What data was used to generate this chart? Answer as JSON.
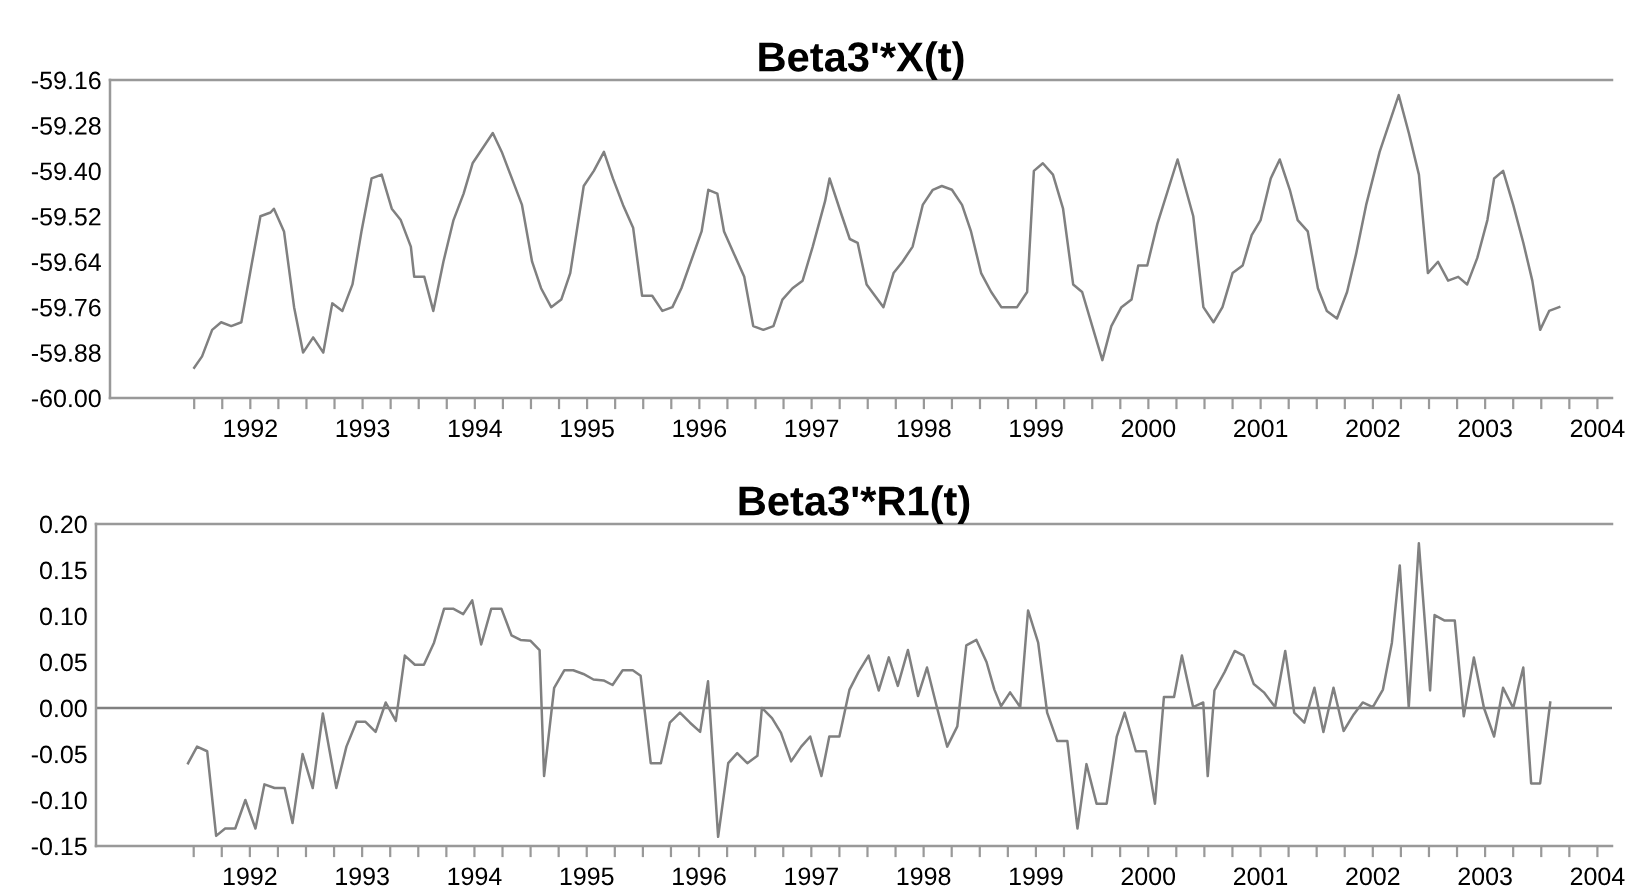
{
  "chart_data": [
    {
      "type": "line",
      "title": "Beta3'*X(t)",
      "color": "#808080",
      "x": [
        1992.0,
        1992.07,
        1992.16,
        1992.24,
        1992.33,
        1992.42,
        1992.51,
        1992.59,
        1992.68,
        1992.71,
        1992.8,
        1992.89,
        1992.97,
        1993.06,
        1993.15,
        1993.23,
        1993.32,
        1993.41,
        1993.49,
        1993.58,
        1993.67,
        1993.76,
        1993.84,
        1993.93,
        1993.96,
        1994.05,
        1994.13,
        1994.22,
        1994.31,
        1994.4,
        1994.48,
        1994.66,
        1994.74,
        1994.83,
        1994.92,
        1995.01,
        1995.09,
        1995.18,
        1995.27,
        1995.35,
        1995.47,
        1995.56,
        1995.65,
        1995.73,
        1995.82,
        1995.91,
        1995.99,
        1996.08,
        1996.17,
        1996.26,
        1996.34,
        1996.52,
        1996.58,
        1996.66,
        1996.72,
        1996.81,
        1996.9,
        1996.98,
        1997.07,
        1997.16,
        1997.24,
        1997.33,
        1997.42,
        1997.51,
        1997.62,
        1997.66,
        1997.76,
        1997.84,
        1997.91,
        1997.99,
        1998.14,
        1998.23,
        1998.31,
        1998.4,
        1998.49,
        1998.58,
        1998.66,
        1998.75,
        1998.84,
        1998.92,
        1999.01,
        1999.1,
        1999.19,
        1999.33,
        1999.42,
        1999.48,
        1999.56,
        1999.65,
        1999.74,
        1999.83,
        1999.91,
        2000.0,
        2000.09,
        2000.17,
        2000.26,
        2000.35,
        2000.41,
        2000.49,
        2000.58,
        2000.76,
        2000.9,
        2000.99,
        2001.08,
        2001.16,
        2001.25,
        2001.34,
        2001.42,
        2001.5,
        2001.59,
        2001.67,
        2001.76,
        2001.83,
        2001.92,
        2002.01,
        2002.09,
        2002.18,
        2002.27,
        2002.35,
        2002.44,
        2002.56,
        2002.73,
        2002.82,
        2002.91,
        2002.99,
        2003.08,
        2003.17,
        2003.26,
        2003.34,
        2003.43,
        2003.52,
        2003.58,
        2003.66,
        2003.75,
        2003.84,
        2003.92,
        2003.99,
        2004.07,
        2004.16
      ],
      "values": [
        -59.92,
        -59.89,
        -59.82,
        -59.8,
        -59.81,
        -59.8,
        -59.65,
        -59.52,
        -59.51,
        -59.5,
        -59.56,
        -59.76,
        -59.88,
        -59.84,
        -59.88,
        -59.75,
        -59.77,
        -59.7,
        -59.56,
        -59.42,
        -59.41,
        -59.5,
        -59.53,
        -59.6,
        -59.68,
        -59.68,
        -59.77,
        -59.64,
        -59.53,
        -59.46,
        -59.38,
        -59.3,
        -59.35,
        -59.42,
        -59.49,
        -59.64,
        -59.71,
        -59.76,
        -59.74,
        -59.67,
        -59.44,
        -59.4,
        -59.35,
        -59.42,
        -59.49,
        -59.55,
        -59.73,
        -59.73,
        -59.77,
        -59.76,
        -59.71,
        -59.56,
        -59.45,
        -59.46,
        -59.56,
        -59.62,
        -59.68,
        -59.81,
        -59.82,
        -59.81,
        -59.74,
        -59.71,
        -59.69,
        -59.6,
        -59.48,
        -59.42,
        -59.51,
        -59.58,
        -59.59,
        -59.7,
        -59.76,
        -59.67,
        -59.64,
        -59.6,
        -59.49,
        -59.45,
        -59.44,
        -59.45,
        -59.49,
        -59.56,
        -59.67,
        -59.72,
        -59.76,
        -59.76,
        -59.72,
        -59.4,
        -59.38,
        -59.41,
        -59.5,
        -59.7,
        -59.72,
        -59.81,
        -59.9,
        -59.81,
        -59.76,
        -59.74,
        -59.65,
        -59.65,
        -59.54,
        -59.37,
        -59.52,
        -59.76,
        -59.8,
        -59.76,
        -59.67,
        -59.65,
        -59.57,
        -59.53,
        -59.42,
        -59.37,
        -59.45,
        -59.53,
        -59.56,
        -59.71,
        -59.77,
        -59.79,
        -59.72,
        -59.62,
        -59.49,
        -59.35,
        -59.2,
        -59.3,
        -59.41,
        -59.67,
        -59.64,
        -59.69,
        -59.68,
        -59.7,
        -59.63,
        -59.53,
        -59.42,
        -59.4,
        -59.49,
        -59.59,
        -59.69,
        -59.82,
        -59.77,
        -59.76
      ],
      "xlim": [
        1991.25,
        2004.63
      ],
      "ylim": [
        -60.0,
        -59.16
      ],
      "yticks": [
        {
          "value": -60.0,
          "label": "-60.00"
        },
        -59.88,
        -59.76,
        -59.64,
        -59.52,
        {
          "value": -59.4,
          "label": "-59.40"
        },
        -59.28,
        -59.16
      ],
      "xticks": [
        {
          "value": 1992,
          "label": null
        },
        {
          "value": 1992.25,
          "label": null
        },
        {
          "value": 1992.5,
          "label": "1992"
        },
        {
          "value": 1992.75,
          "label": null
        },
        {
          "value": 1993,
          "label": null
        },
        {
          "value": 1993.25,
          "label": null
        },
        {
          "value": 1993.5,
          "label": "1993"
        },
        {
          "value": 1993.75,
          "label": null
        },
        {
          "value": 1994,
          "label": null
        },
        {
          "value": 1994.25,
          "label": null
        },
        {
          "value": 1994.5,
          "label": "1994"
        },
        {
          "value": 1994.75,
          "label": null
        },
        {
          "value": 1995,
          "label": null
        },
        {
          "value": 1995.25,
          "label": null
        },
        {
          "value": 1995.5,
          "label": "1995"
        },
        {
          "value": 1995.75,
          "label": null
        },
        {
          "value": 1996,
          "label": null
        },
        {
          "value": 1996.25,
          "label": null
        },
        {
          "value": 1996.5,
          "label": "1996"
        },
        {
          "value": 1996.75,
          "label": null
        },
        {
          "value": 1997,
          "label": null
        },
        {
          "value": 1997.25,
          "label": null
        },
        {
          "value": 1997.5,
          "label": "1997"
        },
        {
          "value": 1997.75,
          "label": null
        },
        {
          "value": 1998,
          "label": null
        },
        {
          "value": 1998.25,
          "label": null
        },
        {
          "value": 1998.5,
          "label": "1998"
        },
        {
          "value": 1998.75,
          "label": null
        },
        {
          "value": 1999,
          "label": null
        },
        {
          "value": 1999.25,
          "label": null
        },
        {
          "value": 1999.5,
          "label": "1999"
        },
        {
          "value": 1999.75,
          "label": null
        },
        {
          "value": 2000,
          "label": null
        },
        {
          "value": 2000.25,
          "label": null
        },
        {
          "value": 2000.5,
          "label": "2000"
        },
        {
          "value": 2000.75,
          "label": null
        },
        {
          "value": 2001,
          "label": null
        },
        {
          "value": 2001.25,
          "label": null
        },
        {
          "value": 2001.5,
          "label": "2001"
        },
        {
          "value": 2001.75,
          "label": null
        },
        {
          "value": 2002,
          "label": null
        },
        {
          "value": 2002.25,
          "label": null
        },
        {
          "value": 2002.5,
          "label": "2002"
        },
        {
          "value": 2002.75,
          "label": null
        },
        {
          "value": 2003,
          "label": null
        },
        {
          "value": 2003.25,
          "label": null
        },
        {
          "value": 2003.5,
          "label": "2003"
        },
        {
          "value": 2003.75,
          "label": null
        },
        {
          "value": 2004,
          "label": null
        },
        {
          "value": 2004.25,
          "label": null
        },
        {
          "value": 2004.5,
          "label": "2004"
        }
      ]
    },
    {
      "type": "line",
      "title": "Beta3'*R1(t)",
      "color": "#808080",
      "x": [
        1991.95,
        1992.03,
        1992.12,
        1992.2,
        1992.28,
        1992.37,
        1992.46,
        1992.55,
        1992.63,
        1992.72,
        1992.81,
        1992.88,
        1992.97,
        1993.06,
        1993.15,
        1993.27,
        1993.36,
        1993.45,
        1993.53,
        1993.62,
        1993.71,
        1993.8,
        1993.88,
        1993.97,
        1994.05,
        1994.14,
        1994.23,
        1994.31,
        1994.4,
        1994.48,
        1994.56,
        1994.65,
        1994.74,
        1994.83,
        1994.91,
        1995.0,
        1995.08,
        1995.12,
        1995.21,
        1995.3,
        1995.38,
        1995.47,
        1995.56,
        1995.65,
        1995.73,
        1995.82,
        1995.91,
        1995.98,
        1996.07,
        1996.16,
        1996.24,
        1996.33,
        1996.42,
        1996.51,
        1996.58,
        1996.67,
        1996.76,
        1996.84,
        1996.93,
        1997.02,
        1997.06,
        1997.15,
        1997.23,
        1997.32,
        1997.41,
        1997.49,
        1997.59,
        1997.66,
        1997.75,
        1997.84,
        1997.92,
        1998.01,
        1998.1,
        1998.19,
        1998.27,
        1998.36,
        1998.45,
        1998.53,
        1998.62,
        1998.71,
        1998.8,
        1998.88,
        1998.97,
        1999.06,
        1999.13,
        1999.19,
        1999.27,
        1999.36,
        1999.43,
        1999.52,
        1999.6,
        1999.69,
        1999.78,
        1999.87,
        1999.95,
        2000.04,
        2000.13,
        2000.22,
        2000.29,
        2000.39,
        2000.48,
        2000.56,
        2000.64,
        2000.73,
        2000.8,
        2000.9,
        2000.99,
        2001.03,
        2001.09,
        2001.18,
        2001.27,
        2001.35,
        2001.44,
        2001.53,
        2001.63,
        2001.72,
        2001.8,
        2001.89,
        2001.98,
        2002.06,
        2002.15,
        2002.24,
        2002.33,
        2002.41,
        2002.5,
        2002.59,
        2002.67,
        2002.74,
        2002.82,
        2002.91,
        2003.01,
        2003.05,
        2003.14,
        2003.23,
        2003.31,
        2003.4,
        2003.49,
        2003.58,
        2003.66,
        2003.75,
        2003.84,
        2003.91,
        2003.99,
        2004.08
      ],
      "values": [
        -0.06,
        -0.042,
        -0.047,
        -0.139,
        -0.131,
        -0.131,
        -0.1,
        -0.131,
        -0.083,
        -0.087,
        -0.087,
        -0.125,
        -0.05,
        -0.087,
        -0.006,
        -0.087,
        -0.042,
        -0.015,
        -0.015,
        -0.026,
        0.006,
        -0.014,
        0.057,
        0.047,
        0.047,
        0.071,
        0.108,
        0.108,
        0.102,
        0.117,
        0.069,
        0.108,
        0.108,
        0.079,
        0.074,
        0.073,
        0.063,
        -0.074,
        0.022,
        0.041,
        0.041,
        0.037,
        0.031,
        0.03,
        0.025,
        0.041,
        0.041,
        0.035,
        -0.06,
        -0.06,
        -0.016,
        -0.005,
        -0.016,
        -0.026,
        0.029,
        -0.14,
        -0.06,
        -0.049,
        -0.06,
        -0.052,
        0.0,
        -0.011,
        -0.027,
        -0.058,
        -0.042,
        -0.031,
        -0.074,
        -0.031,
        -0.031,
        0.02,
        0.039,
        0.057,
        0.019,
        0.055,
        0.024,
        0.063,
        0.013,
        0.044,
        0.0,
        -0.042,
        -0.02,
        0.068,
        0.074,
        0.05,
        0.02,
        0.002,
        0.017,
        0.001,
        0.106,
        0.071,
        -0.005,
        -0.036,
        -0.036,
        -0.131,
        -0.061,
        -0.104,
        -0.104,
        -0.031,
        -0.005,
        -0.047,
        -0.047,
        -0.104,
        0.012,
        0.012,
        0.057,
        0.001,
        0.006,
        -0.074,
        0.019,
        0.039,
        0.062,
        0.057,
        0.026,
        0.017,
        0.001,
        0.062,
        -0.005,
        -0.016,
        0.022,
        -0.026,
        0.022,
        -0.025,
        -0.007,
        0.006,
        0.001,
        0.02,
        0.071,
        0.155,
        0.001,
        0.179,
        0.019,
        0.101,
        0.095,
        0.095,
        -0.009,
        0.055,
        0.0,
        -0.031,
        0.022,
        0.0,
        0.044,
        -0.082,
        -0.082,
        0.006
      ],
      "xlim": [
        1991.13,
        2004.63
      ],
      "ylim": [
        -0.15,
        0.2
      ],
      "yticks": [
        -0.15,
        {
          "value": -0.1,
          "label": "-0.10"
        },
        -0.05,
        {
          "value": 0.0,
          "label": "0.00"
        },
        0.05,
        {
          "value": 0.1,
          "label": "0.10"
        },
        0.15,
        {
          "value": 0.2,
          "label": "0.20"
        }
      ],
      "ref_lines": [
        {
          "axis": "y",
          "value": 0.0,
          "color": "#808080"
        }
      ],
      "xticks": [
        {
          "value": 1992,
          "label": null
        },
        {
          "value": 1992.25,
          "label": null
        },
        {
          "value": 1992.5,
          "label": "1992"
        },
        {
          "value": 1992.75,
          "label": null
        },
        {
          "value": 1993,
          "label": null
        },
        {
          "value": 1993.25,
          "label": null
        },
        {
          "value": 1993.5,
          "label": "1993"
        },
        {
          "value": 1993.75,
          "label": null
        },
        {
          "value": 1994,
          "label": null
        },
        {
          "value": 1994.25,
          "label": null
        },
        {
          "value": 1994.5,
          "label": "1994"
        },
        {
          "value": 1994.75,
          "label": null
        },
        {
          "value": 1995,
          "label": null
        },
        {
          "value": 1995.25,
          "label": null
        },
        {
          "value": 1995.5,
          "label": "1995"
        },
        {
          "value": 1995.75,
          "label": null
        },
        {
          "value": 1996,
          "label": null
        },
        {
          "value": 1996.25,
          "label": null
        },
        {
          "value": 1996.5,
          "label": "1996"
        },
        {
          "value": 1996.75,
          "label": null
        },
        {
          "value": 1997,
          "label": null
        },
        {
          "value": 1997.25,
          "label": null
        },
        {
          "value": 1997.5,
          "label": "1997"
        },
        {
          "value": 1997.75,
          "label": null
        },
        {
          "value": 1998,
          "label": null
        },
        {
          "value": 1998.25,
          "label": null
        },
        {
          "value": 1998.5,
          "label": "1998"
        },
        {
          "value": 1998.75,
          "label": null
        },
        {
          "value": 1999,
          "label": null
        },
        {
          "value": 1999.25,
          "label": null
        },
        {
          "value": 1999.5,
          "label": "1999"
        },
        {
          "value": 1999.75,
          "label": null
        },
        {
          "value": 2000,
          "label": null
        },
        {
          "value": 2000.25,
          "label": null
        },
        {
          "value": 2000.5,
          "label": "2000"
        },
        {
          "value": 2000.75,
          "label": null
        },
        {
          "value": 2001,
          "label": null
        },
        {
          "value": 2001.25,
          "label": null
        },
        {
          "value": 2001.5,
          "label": "2001"
        },
        {
          "value": 2001.75,
          "label": null
        },
        {
          "value": 2002,
          "label": null
        },
        {
          "value": 2002.25,
          "label": null
        },
        {
          "value": 2002.5,
          "label": "2002"
        },
        {
          "value": 2002.75,
          "label": null
        },
        {
          "value": 2003,
          "label": null
        },
        {
          "value": 2003.25,
          "label": null
        },
        {
          "value": 2003.5,
          "label": "2003"
        },
        {
          "value": 2003.75,
          "label": null
        },
        {
          "value": 2004,
          "label": null
        },
        {
          "value": 2004.25,
          "label": null
        },
        {
          "value": 2004.5,
          "label": "2004"
        }
      ]
    }
  ]
}
